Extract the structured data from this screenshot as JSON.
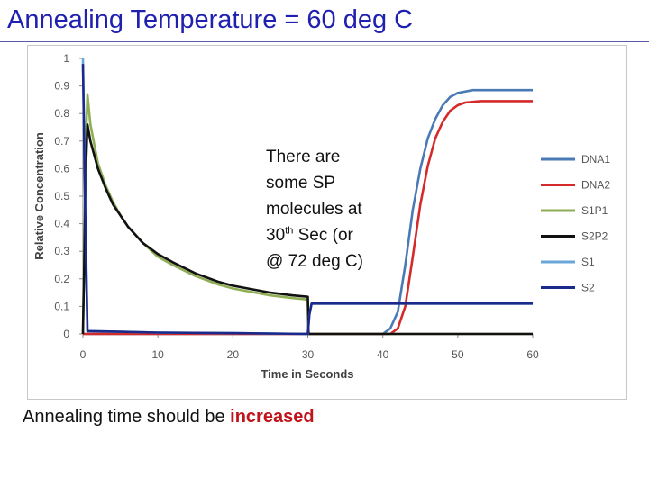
{
  "slide": {
    "title": "Annealing Temperature = 60 deg C",
    "annotation": {
      "line1": "There are",
      "line2": "some SP",
      "line3": "molecules at",
      "line4_num": "30",
      "line4_sup": "th",
      "line4_rest": " Sec (or",
      "line5": "@ 72 deg C)"
    },
    "footer_text": "Annealing time should be ",
    "footer_highlight": "increased",
    "highlight_color": "#c0141a",
    "title_color": "#1f1fb0"
  },
  "chart_data": {
    "type": "line",
    "xlabel": "Time in Seconds",
    "ylabel": "Relative Concentration",
    "xlim": [
      0,
      60
    ],
    "ylim": [
      0,
      1
    ],
    "xticks": [
      "0",
      "10",
      "20",
      "30",
      "40",
      "50",
      "60"
    ],
    "yticks": [
      "0",
      "0.1",
      "0.2",
      "0.3",
      "0.4",
      "0.5",
      "0.6",
      "0.7",
      "0.8",
      "0.9",
      "1"
    ],
    "grid": false,
    "legend_position": "right",
    "series": [
      {
        "name": "DNA1",
        "color": "#4a7ab5",
        "x": [
          0,
          40,
          41,
          42,
          43,
          44,
          45,
          46,
          47,
          48,
          49,
          50,
          52,
          55,
          60
        ],
        "y": [
          0,
          0,
          0.02,
          0.08,
          0.25,
          0.45,
          0.6,
          0.71,
          0.78,
          0.83,
          0.86,
          0.875,
          0.885,
          0.885,
          0.885
        ]
      },
      {
        "name": "DNA2",
        "color": "#d42a2a",
        "x": [
          0,
          41,
          42,
          43,
          44,
          45,
          46,
          47,
          48,
          49,
          50,
          51,
          53,
          56,
          60
        ],
        "y": [
          0,
          0,
          0.02,
          0.1,
          0.28,
          0.47,
          0.61,
          0.71,
          0.77,
          0.81,
          0.83,
          0.84,
          0.845,
          0.845,
          0.845
        ]
      },
      {
        "name": "S1P1",
        "color": "#8fae55",
        "x": [
          0,
          0.4,
          0.6,
          1,
          2,
          3,
          4,
          5,
          6,
          8,
          10,
          12,
          15,
          18,
          20,
          22,
          25,
          28,
          30,
          30.1,
          30.3,
          60
        ],
        "y": [
          0,
          0.7,
          0.87,
          0.76,
          0.62,
          0.54,
          0.48,
          0.43,
          0.39,
          0.33,
          0.28,
          0.25,
          0.21,
          0.18,
          0.165,
          0.155,
          0.14,
          0.13,
          0.125,
          0,
          0,
          0
        ]
      },
      {
        "name": "S2P2",
        "color": "#111111",
        "x": [
          0,
          0.4,
          0.6,
          1,
          2,
          3,
          4,
          5,
          6,
          8,
          10,
          12,
          15,
          18,
          20,
          22,
          25,
          28,
          30,
          30.1,
          30.3,
          60
        ],
        "y": [
          0,
          0.6,
          0.76,
          0.7,
          0.6,
          0.53,
          0.47,
          0.43,
          0.39,
          0.33,
          0.29,
          0.26,
          0.22,
          0.19,
          0.175,
          0.165,
          0.15,
          0.14,
          0.135,
          0,
          0,
          0
        ]
      },
      {
        "name": "S1",
        "color": "#6aa7d8",
        "x": [
          0,
          0.3,
          0.6,
          1,
          5,
          10,
          20,
          30,
          30.2,
          30.5,
          31,
          60
        ],
        "y": [
          1,
          0.5,
          0.01,
          0.01,
          0.008,
          0.005,
          0.003,
          0,
          0.07,
          0.11,
          0.11,
          0.11
        ]
      },
      {
        "name": "S2",
        "color": "#1a2a8a",
        "x": [
          0,
          0.3,
          0.6,
          1,
          5,
          10,
          20,
          30,
          30.2,
          30.5,
          31,
          60
        ],
        "y": [
          0.98,
          0.45,
          0.01,
          0.01,
          0.008,
          0.005,
          0.003,
          0,
          0.07,
          0.11,
          0.11,
          0.11
        ]
      }
    ]
  }
}
